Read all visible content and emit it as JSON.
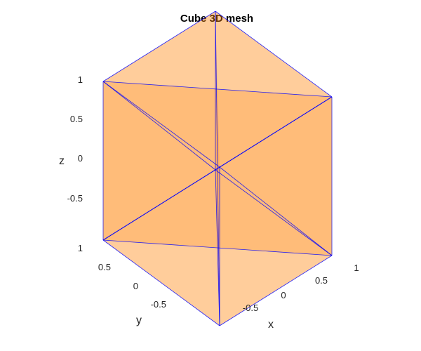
{
  "title": "Cube 3D mesh",
  "axes": {
    "x": {
      "label": "x",
      "ticks": [
        "-0.5",
        "0",
        "0.5",
        "1"
      ]
    },
    "y": {
      "label": "y",
      "ticks": [
        "-0.5",
        "0",
        "0.5",
        "1"
      ]
    },
    "z": {
      "label": "z",
      "ticks": [
        "-0.5",
        "0",
        "0.5",
        "1"
      ]
    }
  },
  "mesh": {
    "face_color": "#ff7f00",
    "face_alpha": 0.6,
    "edge_color": "#0000ff",
    "vertices": [
      [
        -1,
        -1,
        -1
      ],
      [
        1,
        -1,
        -1
      ],
      [
        1,
        1,
        -1
      ],
      [
        -1,
        1,
        -1
      ],
      [
        -1,
        -1,
        1
      ],
      [
        1,
        -1,
        1
      ],
      [
        1,
        1,
        1
      ],
      [
        -1,
        1,
        1
      ]
    ],
    "edges": [
      [
        0,
        4
      ],
      [
        0,
        1
      ],
      [
        0,
        3
      ],
      [
        4,
        5
      ],
      [
        4,
        7
      ],
      [
        1,
        5
      ],
      [
        3,
        7
      ],
      [
        1,
        2
      ],
      [
        3,
        2
      ],
      [
        5,
        6
      ],
      [
        7,
        6
      ],
      [
        2,
        6
      ],
      [
        0,
        5
      ],
      [
        0,
        7
      ],
      [
        0,
        2
      ],
      [
        4,
        2
      ],
      [
        1,
        6
      ],
      [
        3,
        6
      ],
      [
        5,
        7
      ],
      [
        1,
        3
      ],
      [
        0,
        6
      ],
      [
        5,
        3
      ]
    ],
    "faces": [
      [
        0,
        1,
        5
      ],
      [
        0,
        5,
        4
      ],
      [
        0,
        3,
        7
      ],
      [
        0,
        7,
        4
      ],
      [
        0,
        1,
        2
      ],
      [
        0,
        2,
        3
      ],
      [
        4,
        5,
        6
      ],
      [
        4,
        6,
        7
      ],
      [
        1,
        2,
        6
      ],
      [
        1,
        6,
        5
      ],
      [
        3,
        2,
        6
      ],
      [
        3,
        6,
        7
      ],
      [
        0,
        2,
        6
      ],
      [
        0,
        6,
        4
      ],
      [
        1,
        3,
        7
      ],
      [
        1,
        7,
        5
      ]
    ]
  }
}
